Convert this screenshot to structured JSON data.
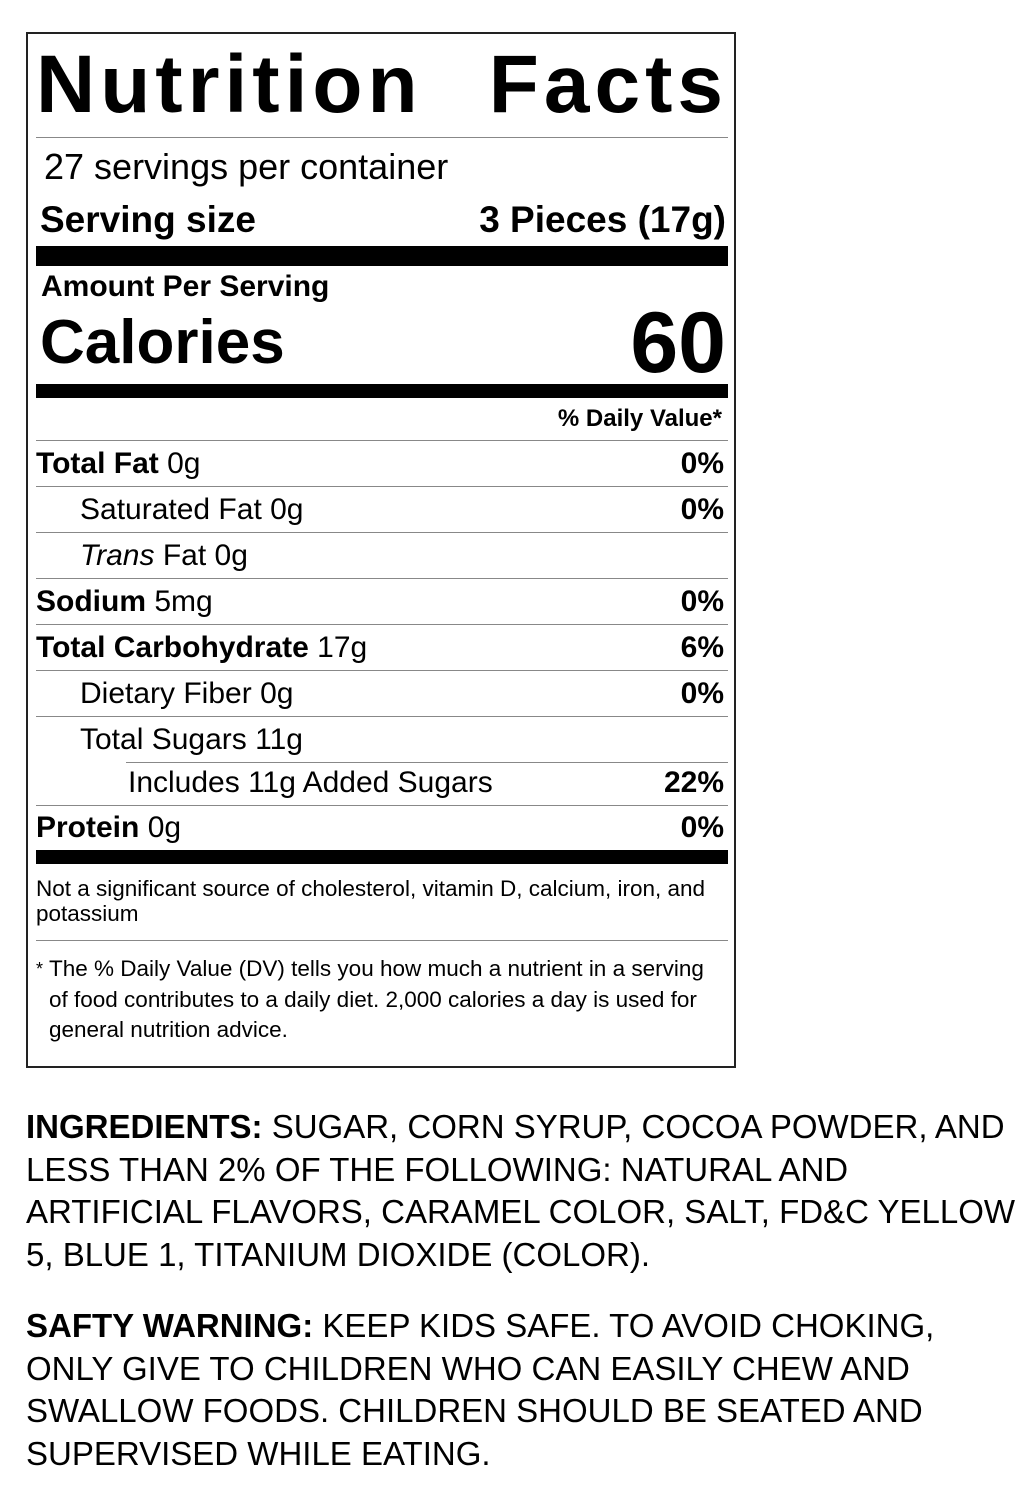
{
  "label": {
    "title_words": [
      "Nutrition",
      "Facts"
    ],
    "servings_per_container": "27 servings per container",
    "serving_size_label": "Serving size",
    "serving_size_value": "3 Pieces (17g)",
    "amount_per_serving": "Amount Per Serving",
    "calories_label": "Calories",
    "calories_value": "60",
    "daily_value_header": "% Daily Value*",
    "nutrients": [
      {
        "name": "Total Fat",
        "amount": "0g",
        "dv": "0%"
      },
      {
        "name": "Saturated Fat",
        "amount": "0g",
        "dv": "0%"
      },
      {
        "name_italic": "Trans",
        "name": "Fat",
        "amount": "0g",
        "dv": ""
      },
      {
        "name": "Sodium",
        "amount": "5mg",
        "dv": "0%"
      },
      {
        "name": "Total Carbohydrate",
        "amount": "17g",
        "dv": "6%"
      },
      {
        "name": "Dietary Fiber",
        "amount": "0g",
        "dv": "0%"
      },
      {
        "name": "Total Sugars",
        "amount": "11g",
        "dv": ""
      },
      {
        "name": "Includes 11g Added Sugars",
        "amount": "",
        "dv": "22%"
      },
      {
        "name": "Protein",
        "amount": "0g",
        "dv": "0%"
      }
    ],
    "not_significant": "Not a significant source of cholesterol, vitamin D, calcium, iron, and potassium",
    "footnote_star": "*",
    "footnote": "The % Daily Value (DV) tells you how much a nutrient in a serving of food contributes to a daily diet. 2,000 calories a day is used for general nutrition advice."
  },
  "ingredients": {
    "heading": "INGREDIENTS:",
    "text": "SUGAR, CORN SYRUP, COCOA POWDER, AND LESS THAN 2% OF THE FOLLOWING: NATURAL AND ARTIFICIAL FLAVORS, CARAMEL COLOR, SALT, FD&C YELLOW 5, BLUE 1, TITANIUM DIOXIDE (COLOR)."
  },
  "warning": {
    "heading": "SAFTY WARNING:",
    "text": "KEEP KIDS SAFE. TO AVOID CHOKING, ONLY GIVE TO CHILDREN WHO CAN EASILY CHEW AND SWALLOW FOODS. CHILDREN SHOULD BE SEATED AND SUPERVISED WHILE EATING."
  }
}
